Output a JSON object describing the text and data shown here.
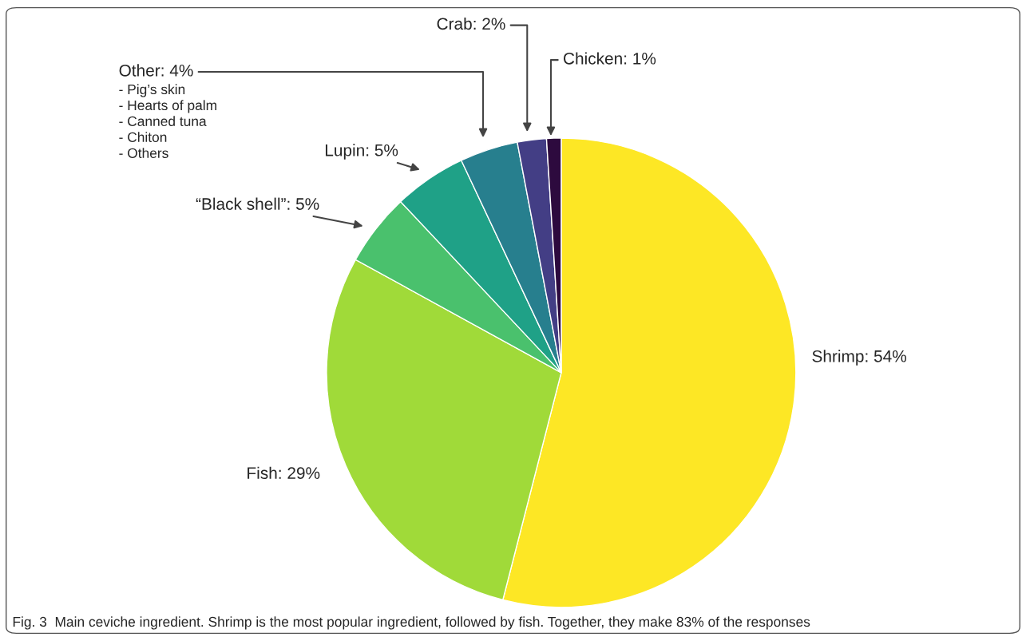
{
  "chart_data": {
    "type": "pie",
    "categories": [
      "Shrimp: 54%",
      "Fish: 29%",
      "“Black shell”: 5%",
      "Lupin: 5%",
      "Other: 4%",
      "Crab: 2%",
      "Chicken: 1%"
    ],
    "values": [
      54,
      29,
      5,
      5,
      4,
      2,
      1
    ],
    "colors": [
      "#fde725",
      "#a0da39",
      "#4ac16d",
      "#1fa187",
      "#277f8e",
      "#433e85",
      "#2d0a3e"
    ],
    "annotations": [
      "- Pig’s skin\n- Hearts of palm\n- Canned tuna\n- Chiton\n- Others",
      "Fig. 3  Main ceviche ingredient. Shrimp is the most popular ingredient, followed by fish. Together, they make 83% of the responses"
    ]
  }
}
